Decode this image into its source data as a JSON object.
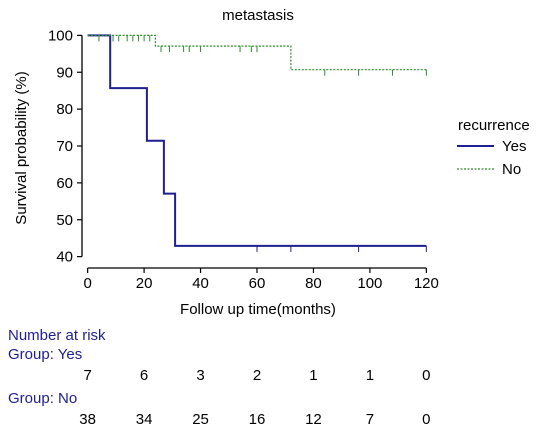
{
  "chart_data": {
    "type": "line",
    "title": "metastasis",
    "xlabel": "Follow up time(months)",
    "ylabel": "Survival probability (%)",
    "xlim": [
      -2,
      122
    ],
    "ylim": [
      38,
      102
    ],
    "x_ticks": [
      "0",
      "20",
      "40",
      "60",
      "80",
      "100",
      "120"
    ],
    "y_ticks": [
      "40",
      "50",
      "60",
      "70",
      "80",
      "90",
      "100"
    ],
    "legend": {
      "title": "recurrence",
      "placement": "right"
    },
    "series": [
      {
        "name": "Yes",
        "color": "#1f1f8f",
        "line_style": "solid",
        "steps": [
          [
            0,
            100
          ],
          [
            8,
            100
          ],
          [
            8,
            85.7
          ],
          [
            21,
            85.7
          ],
          [
            21,
            71.4
          ],
          [
            27,
            71.4
          ],
          [
            27,
            57.1
          ],
          [
            31,
            57.1
          ],
          [
            31,
            42.9
          ],
          [
            120,
            42.9
          ]
        ],
        "censored": [
          [
            60,
            42.9
          ],
          [
            72,
            42.9
          ],
          [
            96,
            42.9
          ],
          [
            120,
            42.9
          ]
        ]
      },
      {
        "name": "No",
        "color": "#2e8b2e",
        "line_style": "dashed",
        "steps": [
          [
            0,
            100
          ],
          [
            24,
            100
          ],
          [
            24,
            97.1
          ],
          [
            72,
            97.1
          ],
          [
            72,
            90.7
          ],
          [
            120,
            90.7
          ]
        ],
        "censored": [
          [
            4,
            100
          ],
          [
            9,
            100
          ],
          [
            11,
            100
          ],
          [
            14,
            100
          ],
          [
            16,
            100
          ],
          [
            18,
            100
          ],
          [
            20,
            100
          ],
          [
            22,
            100
          ],
          [
            26,
            97.1
          ],
          [
            29,
            97.1
          ],
          [
            34,
            97.1
          ],
          [
            36,
            97.1
          ],
          [
            40,
            97.1
          ],
          [
            54,
            97.1
          ],
          [
            58,
            97.1
          ],
          [
            60,
            97.1
          ],
          [
            84,
            90.7
          ],
          [
            96,
            90.7
          ],
          [
            108,
            90.7
          ],
          [
            120,
            90.7
          ]
        ]
      }
    ],
    "risk_table": {
      "heading": "Number at risk",
      "groups": [
        {
          "label": "Group: Yes",
          "values": [
            "7",
            "6",
            "3",
            "2",
            "1",
            "1",
            "0"
          ]
        },
        {
          "label": "Group: No",
          "values": [
            "38",
            "34",
            "25",
            "16",
            "12",
            "7",
            "0"
          ]
        }
      ],
      "color": "#1f1f8f"
    }
  }
}
